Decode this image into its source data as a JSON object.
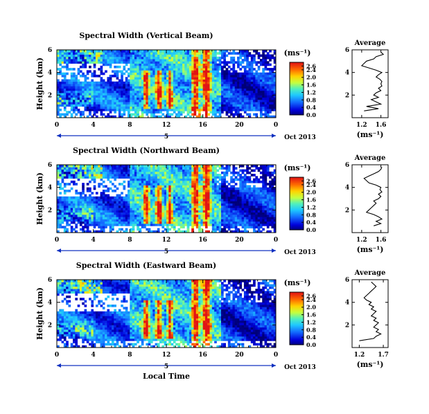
{
  "xlabel": "Local Time",
  "chart_data": [
    {
      "type": "heatmap",
      "title": "Spectral Width (Vertical Beam)",
      "ylabel": "Height (km)",
      "xlim": [
        0,
        24
      ],
      "ylim": [
        0,
        6
      ],
      "x_ticks": [
        "0",
        "4",
        "8",
        "12",
        "16",
        "20",
        "0"
      ],
      "y_ticks": [
        "6",
        "4",
        "2"
      ],
      "date_label": "5",
      "date_note": "Oct 2013",
      "colorbar": {
        "unit": "(ms⁻¹)",
        "ticks": [
          "2.6",
          "2.4",
          "2.0",
          "1.6",
          "1.2",
          "0.8",
          "0.4",
          "0.0"
        ],
        "range": [
          0.0,
          2.8
        ]
      },
      "profile": {
        "title": "Average",
        "xlabel": "(ms⁻¹)",
        "x_ticks": [
          "1.2",
          "1.6"
        ],
        "y_ticks": [
          "6",
          "4",
          "2"
        ],
        "xlim": [
          1.0,
          1.75
        ],
        "ylim": [
          0,
          6
        ],
        "heights": [
          0.6,
          0.8,
          1.0,
          1.2,
          1.4,
          1.6,
          1.8,
          2.0,
          2.2,
          2.4,
          2.6,
          2.8,
          3.0,
          3.2,
          3.4,
          3.6,
          3.8,
          4.0,
          4.2,
          4.4,
          4.6,
          4.8,
          5.0,
          5.2,
          5.4,
          5.6,
          5.8
        ],
        "values": [
          1.25,
          1.55,
          1.3,
          1.6,
          1.5,
          1.4,
          1.55,
          1.45,
          1.5,
          1.6,
          1.55,
          1.62,
          1.6,
          1.62,
          1.58,
          1.5,
          1.55,
          1.62,
          1.5,
          1.35,
          1.2,
          1.25,
          1.3,
          1.45,
          1.5,
          1.65,
          1.6
        ]
      }
    },
    {
      "type": "heatmap",
      "title": "Spectral Width (Northward Beam)",
      "ylabel": "Height (km)",
      "xlim": [
        0,
        24
      ],
      "ylim": [
        0,
        6
      ],
      "x_ticks": [
        "0",
        "4",
        "8",
        "12",
        "16",
        "20",
        "0"
      ],
      "y_ticks": [
        "6",
        "4",
        "2"
      ],
      "date_label": "5",
      "date_note": "Oct 2013",
      "colorbar": {
        "unit": "(ms⁻¹)",
        "ticks": [
          "2.6",
          "2.4",
          "2.0",
          "1.6",
          "1.2",
          "0.8",
          "0.4",
          "0.0"
        ],
        "range": [
          0.0,
          2.8
        ]
      },
      "profile": {
        "title": "Average",
        "xlabel": "(ms⁻¹)",
        "x_ticks": [
          "1.2",
          "1.6"
        ],
        "y_ticks": [
          "6",
          "4",
          "2"
        ],
        "xlim": [
          1.0,
          1.75
        ],
        "ylim": [
          0,
          6
        ],
        "heights": [
          0.6,
          0.8,
          1.0,
          1.2,
          1.4,
          1.6,
          1.8,
          2.0,
          2.2,
          2.4,
          2.6,
          2.8,
          3.0,
          3.2,
          3.4,
          3.6,
          3.8,
          4.0,
          4.2,
          4.4,
          4.6,
          4.8,
          5.0,
          5.2,
          5.4,
          5.6,
          5.8
        ],
        "values": [
          1.45,
          1.6,
          1.5,
          1.62,
          1.55,
          1.45,
          1.3,
          1.35,
          1.4,
          1.45,
          1.5,
          1.45,
          1.55,
          1.6,
          1.55,
          1.62,
          1.58,
          1.6,
          1.5,
          1.35,
          1.3,
          1.25,
          1.35,
          1.45,
          1.55,
          1.6,
          1.62
        ]
      }
    },
    {
      "type": "heatmap",
      "title": "Spectral Width (Eastward Beam)",
      "ylabel": "Height (km)",
      "xlim": [
        0,
        24
      ],
      "ylim": [
        0,
        6
      ],
      "x_ticks": [
        "0",
        "4",
        "8",
        "12",
        "16",
        "20",
        "0"
      ],
      "y_ticks": [
        "6",
        "4",
        "2"
      ],
      "date_label": "5",
      "date_note": "Oct 2013",
      "colorbar": {
        "unit": "(ms⁻¹)",
        "ticks": [
          "2.6",
          "2.4",
          "2.0",
          "1.6",
          "1.2",
          "0.8",
          "0.4",
          "0.0"
        ],
        "range": [
          0.0,
          2.8
        ]
      },
      "profile": {
        "title": "Average",
        "xlabel": "(ms⁻¹)",
        "x_ticks": [
          "1.2",
          "1.7"
        ],
        "y_ticks": [
          "6",
          "4",
          "2"
        ],
        "xlim": [
          1.05,
          1.8
        ],
        "ylim": [
          0,
          6
        ],
        "heights": [
          0.6,
          0.8,
          1.0,
          1.2,
          1.4,
          1.6,
          1.8,
          2.0,
          2.2,
          2.4,
          2.6,
          2.8,
          3.0,
          3.2,
          3.4,
          3.6,
          3.8,
          4.0,
          4.2,
          4.4,
          4.6,
          4.8,
          5.0,
          5.2,
          5.4,
          5.6,
          5.8
        ],
        "values": [
          1.2,
          1.5,
          1.55,
          1.65,
          1.55,
          1.6,
          1.5,
          1.55,
          1.6,
          1.5,
          1.55,
          1.45,
          1.5,
          1.55,
          1.45,
          1.5,
          1.4,
          1.45,
          1.35,
          1.3,
          1.35,
          1.4,
          1.45,
          1.5,
          1.55,
          1.5,
          1.45
        ]
      }
    }
  ]
}
